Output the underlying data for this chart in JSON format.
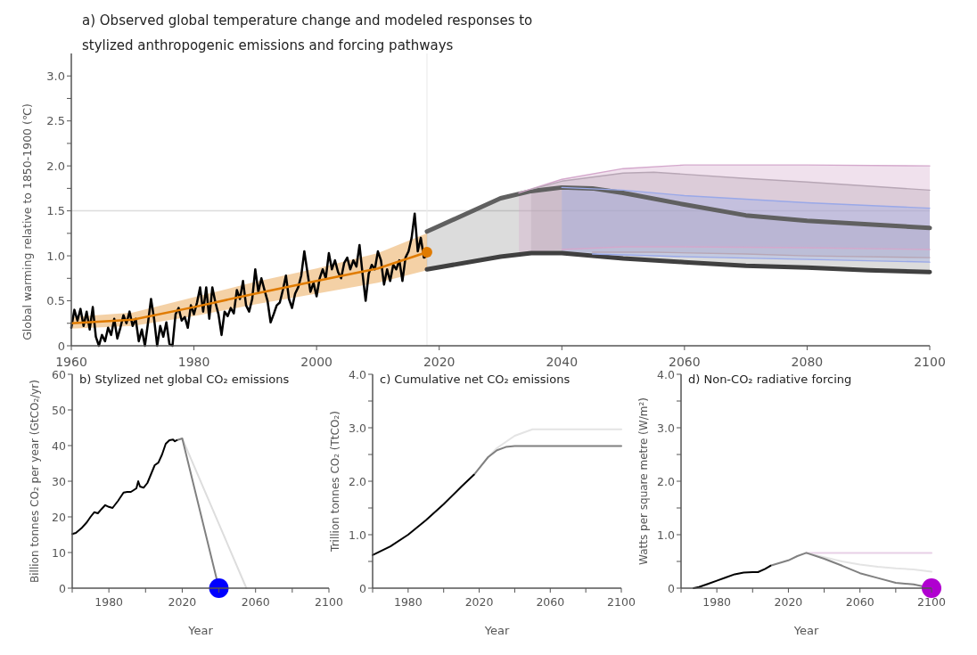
{
  "chart_data": [
    {
      "type": "line",
      "title": "a) Observed global temperature change and modeled responses to stylized anthropogenic emissions and forcing pathways",
      "ylabel": "Global warming relative to 1850-1900 (℃)",
      "xlim": [
        1960,
        2100
      ],
      "xticks": [
        1960,
        1980,
        2000,
        2020,
        2040,
        2060,
        2080,
        2100
      ],
      "ylim": [
        0,
        3.25
      ],
      "yticks": [
        0,
        {
          "value": 0.25,
          "label": null
        },
        {
          "value": 0.5,
          "label": "0.5"
        },
        {
          "value": 0.75,
          "label": null
        },
        {
          "value": 1,
          "label": "1.0"
        },
        {
          "value": 1.25,
          "label": null
        },
        {
          "value": 1.5,
          "label": "1.5"
        },
        {
          "value": 1.75,
          "label": null
        },
        {
          "value": 2,
          "label": "2.0"
        },
        {
          "value": 2.25,
          "label": null
        },
        {
          "value": 2.5,
          "label": "2.5"
        },
        {
          "value": 2.75,
          "label": null
        },
        {
          "value": 3,
          "label": "3.0"
        }
      ],
      "grid": false,
      "ref_lines": [
        {
          "axis": "y",
          "value": 1.5,
          "color": "#dcdcdc"
        },
        {
          "axis": "x",
          "value": 2018,
          "color": "#ececec"
        }
      ],
      "series": [
        {
          "color": "#606060",
          "x": [
            2018,
            2030,
            2035,
            2040,
            2045,
            2050,
            2060,
            2070,
            2080,
            2090,
            2100
          ],
          "values": [
            1.27,
            1.64,
            1.72,
            1.76,
            1.75,
            1.7,
            1.57,
            1.45,
            1.39,
            1.35,
            1.31
          ],
          "lower": [
            0.85,
            0.99,
            1.03,
            1.03,
            1.0,
            0.97,
            0.93,
            0.89,
            0.87,
            0.84,
            0.82
          ],
          "upper": [
            1.27,
            1.64,
            1.72,
            1.76,
            1.75,
            1.7,
            1.57,
            1.45,
            1.39,
            1.35,
            1.31
          ]
        },
        {
          "color": "#404040",
          "x": [
            2018,
            2030,
            2035,
            2040,
            2045,
            2050,
            2060,
            2070,
            2080,
            2090,
            2100
          ],
          "values": [
            0.85,
            0.99,
            1.03,
            1.03,
            1.0,
            0.97,
            0.93,
            0.89,
            0.87,
            0.84,
            0.82
          ]
        },
        {
          "color": "#d4a8cc",
          "x": [
            2033,
            2040,
            2050,
            2060,
            2080,
            2100
          ],
          "values": [
            1.7,
            1.85,
            1.97,
            2.01,
            2.01,
            2.0
          ],
          "lower": [
            1.02,
            1.07,
            1.1,
            1.1,
            1.09,
            1.07
          ],
          "upper": [
            1.7,
            1.85,
            1.97,
            2.01,
            2.01,
            2.0
          ]
        },
        {
          "color": "#d4a8cc",
          "x": [
            2040,
            2050,
            2060,
            2080,
            2100
          ],
          "values": [
            1.07,
            1.1,
            1.1,
            1.09,
            1.07
          ]
        },
        {
          "color": "#b7a6b5",
          "x": [
            2035,
            2040,
            2050,
            2055,
            2070,
            2080,
            2100
          ],
          "values": [
            1.74,
            1.83,
            1.92,
            1.93,
            1.86,
            1.82,
            1.73
          ],
          "lower": [
            1.03,
            1.04,
            1.04,
            1.04,
            1.02,
            1.0,
            0.98
          ],
          "upper": [
            1.74,
            1.83,
            1.92,
            1.93,
            1.86,
            1.82,
            1.73
          ]
        },
        {
          "color": "#b7a6b5",
          "x": [
            2045,
            2050,
            2055,
            2070,
            2080,
            2100
          ],
          "values": [
            1.04,
            1.04,
            1.04,
            1.02,
            1.0,
            0.98
          ]
        },
        {
          "color": "#99a8e8",
          "x": [
            2040,
            2050,
            2060,
            2080,
            2100
          ],
          "values": [
            1.76,
            1.73,
            1.67,
            1.59,
            1.53
          ],
          "lower": [
            1.03,
            1.01,
            0.99,
            0.96,
            0.93
          ],
          "upper": [
            1.76,
            1.73,
            1.67,
            1.59,
            1.53
          ]
        },
        {
          "color": "#99a8e8",
          "x": [
            2045,
            2050,
            2060,
            2080,
            2100
          ],
          "values": [
            1.02,
            1.01,
            0.99,
            0.96,
            0.93
          ]
        },
        {
          "color": "#000000",
          "x": [
            1960,
            1960.5,
            1961,
            1961.5,
            1962,
            1962.5,
            1963,
            1963.5,
            1964,
            1964.5,
            1965,
            1965.5,
            1966,
            1966.5,
            1967,
            1967.5,
            1968,
            1968.5,
            1969,
            1969.5,
            1970,
            1970.5,
            1971,
            1971.5,
            1972,
            1972.5,
            1973,
            1973.5,
            1974,
            1974.5,
            1975,
            1975.5,
            1976,
            1976.5,
            1977,
            1977.5,
            1978,
            1978.5,
            1979,
            1979.5,
            1980,
            1980.5,
            1981,
            1981.5,
            1982,
            1982.5,
            1983,
            1983.5,
            1984,
            1984.5,
            1985,
            1985.5,
            1986,
            1986.5,
            1987,
            1987.5,
            1988,
            1988.5,
            1989,
            1989.5,
            1990,
            1990.5,
            1991,
            1991.5,
            1992,
            1992.5,
            1993,
            1993.5,
            1994,
            1994.5,
            1995,
            1995.5,
            1996,
            1996.5,
            1997,
            1997.5,
            1998,
            1998.5,
            1999,
            1999.5,
            2000,
            2000.5,
            2001,
            2001.5,
            2002,
            2002.5,
            2003,
            2003.5,
            2004,
            2004.5,
            2005,
            2005.5,
            2006,
            2006.5,
            2007,
            2007.5,
            2008,
            2008.5,
            2009,
            2009.5,
            2010,
            2010.5,
            2011,
            2011.5,
            2012,
            2012.5,
            2013,
            2013.5,
            2014,
            2014.5,
            2015,
            2015.5,
            2016,
            2016.5,
            2017,
            2017.5,
            2018
          ],
          "values": [
            0.2,
            0.4,
            0.28,
            0.41,
            0.22,
            0.38,
            0.18,
            0.43,
            0.1,
            0.0,
            0.12,
            0.05,
            0.2,
            0.12,
            0.3,
            0.08,
            0.2,
            0.34,
            0.25,
            0.38,
            0.22,
            0.3,
            0.05,
            0.18,
            0.0,
            0.25,
            0.52,
            0.3,
            0.0,
            0.22,
            0.1,
            0.26,
            0.02,
            0.0,
            0.35,
            0.42,
            0.28,
            0.32,
            0.2,
            0.45,
            0.35,
            0.48,
            0.65,
            0.38,
            0.65,
            0.3,
            0.65,
            0.48,
            0.35,
            0.12,
            0.38,
            0.33,
            0.42,
            0.36,
            0.62,
            0.52,
            0.72,
            0.45,
            0.38,
            0.52,
            0.85,
            0.6,
            0.75,
            0.62,
            0.5,
            0.26,
            0.35,
            0.45,
            0.48,
            0.62,
            0.78,
            0.52,
            0.42,
            0.58,
            0.65,
            0.78,
            1.05,
            0.82,
            0.6,
            0.7,
            0.55,
            0.75,
            0.85,
            0.75,
            1.03,
            0.85,
            0.95,
            0.82,
            0.75,
            0.92,
            0.98,
            0.85,
            0.95,
            0.88,
            1.12,
            0.8,
            0.5,
            0.8,
            0.9,
            0.85,
            1.05,
            0.95,
            0.68,
            0.85,
            0.72,
            0.9,
            0.85,
            0.95,
            0.72,
            0.98,
            1.05,
            1.2,
            1.47,
            1.05,
            1.2,
            0.98,
            1.0
          ]
        },
        {
          "color": "#e07b00",
          "x": [
            1960,
            1970,
            1980,
            1990,
            2000,
            2010,
            2018
          ],
          "values": [
            0.25,
            0.29,
            0.43,
            0.58,
            0.72,
            0.86,
            1.04
          ],
          "lower": [
            0.19,
            0.22,
            0.33,
            0.46,
            0.58,
            0.7,
            0.84
          ],
          "upper": [
            0.32,
            0.37,
            0.54,
            0.71,
            0.86,
            1.03,
            1.25
          ]
        },
        {
          "type": "scatter",
          "marker": "circle",
          "color": "#e07b00",
          "x": [
            2018
          ],
          "values": [
            1.04
          ]
        }
      ]
    },
    {
      "type": "line",
      "title": "b) Stylized net global CO₂ emissions",
      "xlabel": "Year",
      "ylabel": "Billion tonnes CO₂ per year (GtCO₂/yr)",
      "xlim": [
        1960,
        2100
      ],
      "xticks": [
        {
          "value": 1960,
          "label": null
        },
        1980,
        {
          "value": 2000,
          "label": null
        },
        2020,
        {
          "value": 2040,
          "label": null
        },
        2060,
        {
          "value": 2080,
          "label": null
        },
        2100
      ],
      "ylim": [
        0,
        60
      ],
      "yticks": [
        0,
        10,
        20,
        30,
        40,
        50,
        60
      ],
      "grid": false,
      "series": [
        {
          "color": "#dddddd",
          "x": [
            2020,
            2055
          ],
          "values": [
            42,
            0
          ]
        },
        {
          "color": "#808080",
          "x": [
            2017,
            2020,
            2040
          ],
          "values": [
            41.5,
            42,
            0
          ]
        },
        {
          "color": "#000000",
          "x": [
            1960,
            1962,
            1965,
            1968,
            1970,
            1972,
            1974,
            1976,
            1978,
            1980,
            1982,
            1985,
            1988,
            1990,
            1992,
            1995,
            1996,
            1997,
            1999,
            2001,
            2003,
            2005,
            2007,
            2009,
            2011,
            2013,
            2015,
            2016,
            2017
          ],
          "values": [
            15.2,
            15.5,
            16.8,
            18.5,
            20,
            21.3,
            21,
            22.2,
            23.3,
            22.8,
            22.5,
            24.5,
            26.8,
            27,
            27,
            28,
            30,
            28.5,
            28.2,
            29.5,
            32,
            34.5,
            35.2,
            37.5,
            40.5,
            41.5,
            41.7,
            41.2,
            41.5
          ]
        },
        {
          "type": "scatter",
          "marker": "circle",
          "color": "#0000ff",
          "x": [
            2040
          ],
          "values": [
            0
          ]
        }
      ]
    },
    {
      "type": "line",
      "title": "c) Cumulative net CO₂ emissions",
      "xlabel": "Year",
      "ylabel": "Trillion tonnes CO₂ (TtCO₂)",
      "xlim": [
        1960,
        2100
      ],
      "xticks": [
        {
          "value": 1960,
          "label": null
        },
        1980,
        {
          "value": 2000,
          "label": null
        },
        2020,
        {
          "value": 2040,
          "label": null
        },
        2060,
        {
          "value": 2080,
          "label": null
        },
        2100
      ],
      "ylim": [
        0,
        4
      ],
      "yticks": [
        0,
        {
          "value": 0.5,
          "label": null
        },
        {
          "value": 1,
          "label": "1.0"
        },
        {
          "value": 1.5,
          "label": null
        },
        {
          "value": 2,
          "label": "2.0"
        },
        {
          "value": 2.5,
          "label": null
        },
        {
          "value": 3,
          "label": "3.0"
        },
        {
          "value": 3.5,
          "label": null
        },
        {
          "value": 4,
          "label": "4.0"
        }
      ],
      "grid": false,
      "series": [
        {
          "color": "#e4e4e4",
          "x": [
            2025,
            2030,
            2040,
            2050,
            2100
          ],
          "values": [
            2.45,
            2.62,
            2.85,
            2.97,
            2.97
          ]
        },
        {
          "color": "#808080",
          "x": [
            2017,
            2025,
            2030,
            2035,
            2040,
            2100
          ],
          "values": [
            2.12,
            2.45,
            2.58,
            2.64,
            2.66,
            2.66
          ]
        },
        {
          "color": "#000000",
          "x": [
            1960,
            1970,
            1980,
            1990,
            2000,
            2010,
            2017
          ],
          "values": [
            0.62,
            0.78,
            1.0,
            1.27,
            1.57,
            1.9,
            2.12
          ]
        }
      ]
    },
    {
      "type": "line",
      "title": "d) Non-CO₂ radiative forcing",
      "xlabel": "Year",
      "ylabel": "Watts per square metre (W/m²)",
      "xlim": [
        1960,
        2100
      ],
      "xticks": [
        {
          "value": 1960,
          "label": null
        },
        1980,
        {
          "value": 2000,
          "label": null
        },
        2020,
        {
          "value": 2040,
          "label": null
        },
        2060,
        {
          "value": 2080,
          "label": null
        },
        2100
      ],
      "ylim": [
        0,
        4
      ],
      "yticks": [
        0,
        {
          "value": 0.5,
          "label": null
        },
        {
          "value": 1,
          "label": "1.0"
        },
        {
          "value": 1.5,
          "label": null
        },
        {
          "value": 2,
          "label": "2.0"
        },
        {
          "value": 2.5,
          "label": null
        },
        {
          "value": 3,
          "label": "3.0"
        },
        {
          "value": 3.5,
          "label": null
        },
        {
          "value": 4,
          "label": "4.0"
        }
      ],
      "grid": false,
      "series": [
        {
          "color": "#e8cfe6",
          "x": [
            2030,
            2100
          ],
          "values": [
            0.66,
            0.66
          ]
        },
        {
          "color": "#e4e4e4",
          "x": [
            2030,
            2040,
            2050,
            2060,
            2070,
            2080,
            2090,
            2100
          ],
          "values": [
            0.66,
            0.58,
            0.5,
            0.44,
            0.4,
            0.37,
            0.35,
            0.31
          ]
        },
        {
          "color": "#808080",
          "x": [
            2010,
            2020,
            2025,
            2030,
            2040,
            2050,
            2060,
            2070,
            2080,
            2090,
            2100
          ],
          "values": [
            0.42,
            0.52,
            0.6,
            0.66,
            0.55,
            0.42,
            0.28,
            0.19,
            0.1,
            0.07,
            0.0
          ]
        },
        {
          "color": "#000000",
          "x": [
            1967,
            1970,
            1975,
            1980,
            1985,
            1990,
            1995,
            2000,
            2003,
            2007,
            2010
          ],
          "values": [
            0,
            0.02,
            0.08,
            0.14,
            0.2,
            0.26,
            0.29,
            0.3,
            0.3,
            0.36,
            0.42
          ]
        },
        {
          "type": "scatter",
          "marker": "circle",
          "color": "#b000d0",
          "x": [
            2100
          ],
          "values": [
            0
          ]
        }
      ]
    }
  ]
}
